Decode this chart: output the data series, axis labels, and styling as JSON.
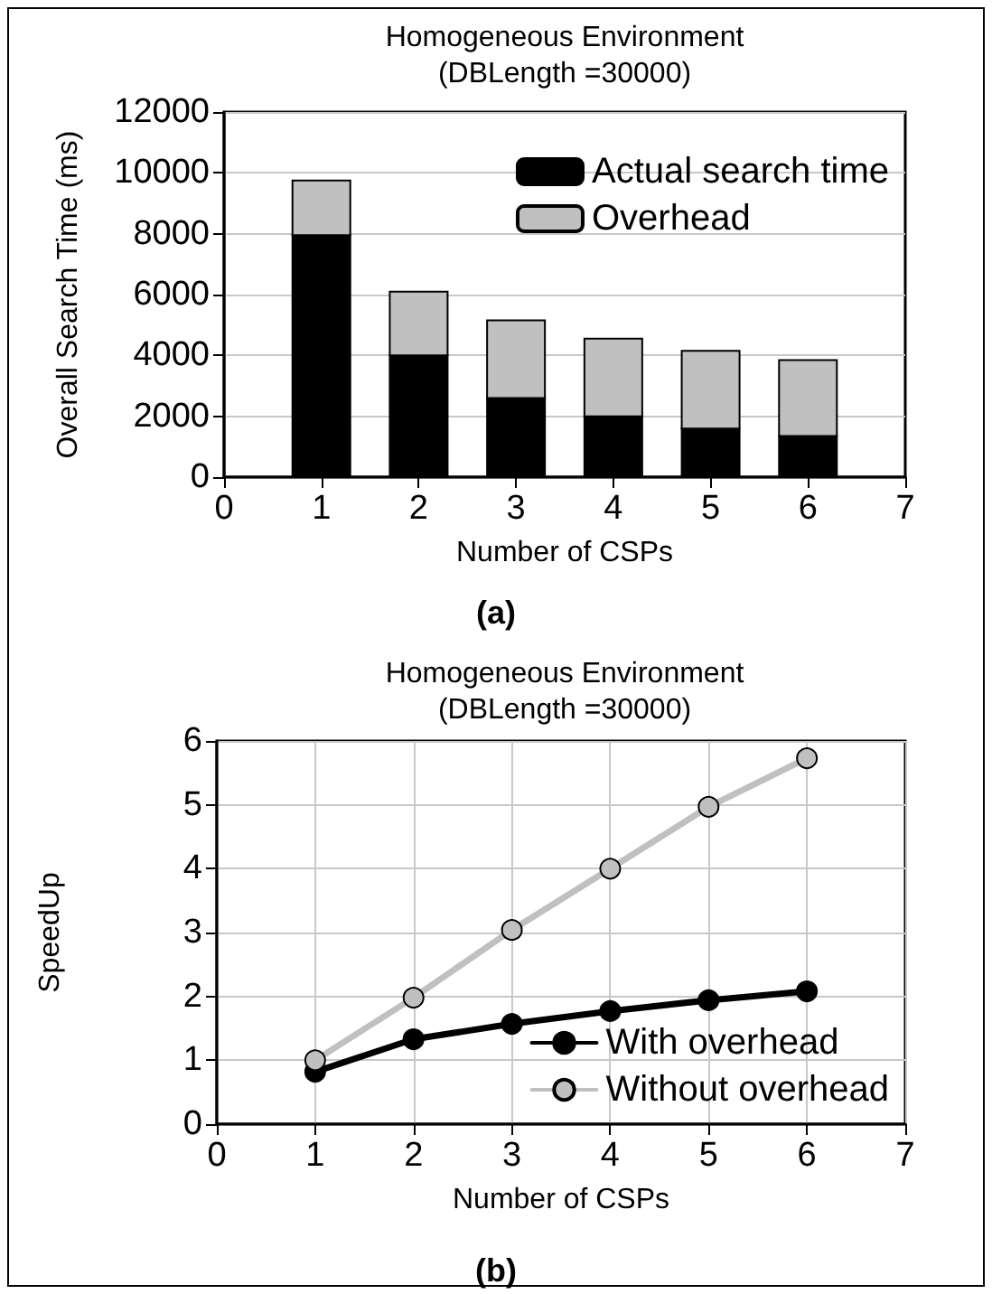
{
  "chart_data": [
    {
      "type": "bar",
      "title": "Homogeneous Environment\n(DBLength =30000)",
      "xlabel": "Number of CSPs",
      "ylabel": "Overall Search Time (ms)",
      "stacked": true,
      "x": [
        1,
        2,
        3,
        4,
        5,
        6
      ],
      "series": [
        {
          "name": "Actual search time",
          "color": "#000000",
          "values": [
            7950,
            4000,
            2600,
            2000,
            1600,
            1350
          ]
        },
        {
          "name": "Overhead",
          "color": "#c0c0c0",
          "values": [
            1800,
            2100,
            2550,
            2550,
            2550,
            2500
          ]
        }
      ],
      "xlim": [
        0,
        7
      ],
      "xticks": [
        0,
        1,
        2,
        3,
        4,
        5,
        6,
        7
      ],
      "ylim": [
        0,
        12000
      ],
      "yticks": [
        0,
        2000,
        4000,
        6000,
        8000,
        10000,
        12000
      ],
      "grid": "y",
      "legend": "top right",
      "annotations": [
        "(a)"
      ]
    },
    {
      "type": "line",
      "title": "Homogeneous Environment\n(DBLength =30000)",
      "xlabel": "Number of CSPs",
      "ylabel": "SpeedUp",
      "x": [
        1,
        2,
        3,
        4,
        5,
        6
      ],
      "series": [
        {
          "name": "With overhead",
          "color": "#000000",
          "values": [
            0.82,
            1.33,
            1.57,
            1.77,
            1.94,
            2.08
          ]
        },
        {
          "name": "Without overhead",
          "color": "#c0c0c0",
          "values": [
            1.0,
            1.98,
            3.04,
            4.0,
            4.97,
            5.73
          ]
        }
      ],
      "xlim": [
        0,
        7
      ],
      "xticks": [
        0,
        1,
        2,
        3,
        4,
        5,
        6,
        7
      ],
      "ylim": [
        0,
        6
      ],
      "yticks": [
        0,
        1,
        2,
        3,
        4,
        5,
        6
      ],
      "grid": true,
      "legend": "bottom right",
      "marker": "circle",
      "line_style": "solid",
      "annotations": [
        "(b)"
      ]
    }
  ]
}
